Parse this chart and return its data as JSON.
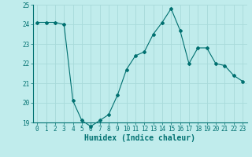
{
  "xlabel": "Humidex (Indice chaleur)",
  "x": [
    0,
    1,
    2,
    3,
    4,
    5,
    6,
    7,
    8,
    9,
    10,
    11,
    12,
    13,
    14,
    15,
    16,
    17,
    18,
    19,
    20,
    21,
    22,
    23
  ],
  "y": [
    24.1,
    24.1,
    24.1,
    24.0,
    20.1,
    19.1,
    18.8,
    19.1,
    19.4,
    20.4,
    21.7,
    22.4,
    22.6,
    23.5,
    24.1,
    24.8,
    23.7,
    22.0,
    22.8,
    22.8,
    22.0,
    21.9,
    21.4,
    21.1
  ],
  "line_color": "#007070",
  "marker": "D",
  "marker_size": 2,
  "bg_color": "#c0ecec",
  "grid_color": "#a8dada",
  "ylim": [
    19,
    25
  ],
  "xlim": [
    -0.5,
    23.5
  ],
  "yticks": [
    19,
    20,
    21,
    22,
    23,
    24,
    25
  ],
  "xticks": [
    0,
    1,
    2,
    3,
    4,
    5,
    6,
    7,
    8,
    9,
    10,
    11,
    12,
    13,
    14,
    15,
    16,
    17,
    18,
    19,
    20,
    21,
    22,
    23
  ],
  "tick_color": "#007070",
  "label_color": "#007070",
  "tick_fontsize": 5.5,
  "xlabel_fontsize": 7.0
}
